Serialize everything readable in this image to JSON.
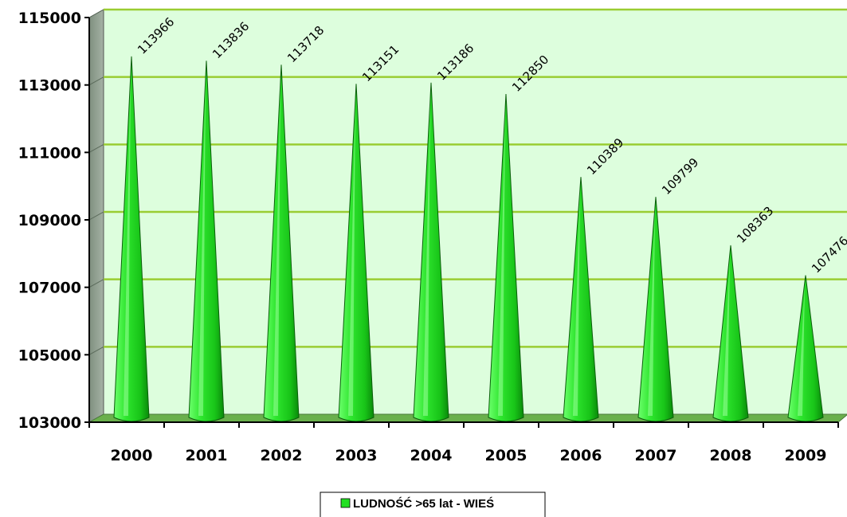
{
  "chart_data": {
    "type": "bar",
    "bar_shape": "cone",
    "categories": [
      "2000",
      "2001",
      "2002",
      "2003",
      "2004",
      "2005",
      "2006",
      "2007",
      "2008",
      "2009"
    ],
    "series": [
      {
        "name": "LUDNOŚĆ >65 lat - WIEŚ",
        "values": [
          113966,
          113836,
          113718,
          113151,
          113186,
          112850,
          110389,
          109799,
          108363,
          107476
        ],
        "labels": [
          "113966",
          "113836",
          "113718",
          "113151",
          "113186",
          "112850",
          "110389",
          "109799",
          "108363",
          "107476"
        ]
      }
    ],
    "title": "",
    "xlabel": "",
    "ylabel": "",
    "ylim": [
      103000,
      115000
    ],
    "yticks": [
      103000,
      105000,
      107000,
      109000,
      111000,
      113000,
      115000
    ],
    "ytick_labels": [
      "103000",
      "105000",
      "107000",
      "109000",
      "111000",
      "113000",
      "115000"
    ],
    "grid": true,
    "legend_position": "bottom",
    "colors": {
      "bar": "#22e022",
      "bar_dark": "#0a8a0a",
      "plot_background": "#ddfedd",
      "gridline": "#9acd32",
      "floor": "#6ab04c",
      "side_wall": "#8c9a8c"
    }
  }
}
